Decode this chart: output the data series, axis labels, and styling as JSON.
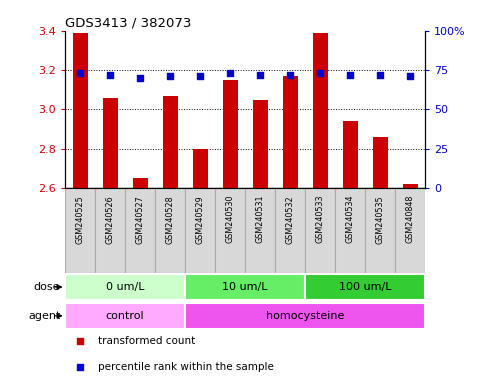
{
  "title": "GDS3413 / 382073",
  "samples": [
    "GSM240525",
    "GSM240526",
    "GSM240527",
    "GSM240528",
    "GSM240529",
    "GSM240530",
    "GSM240531",
    "GSM240532",
    "GSM240533",
    "GSM240534",
    "GSM240535",
    "GSM240848"
  ],
  "transformed_count": [
    3.39,
    3.06,
    2.65,
    3.07,
    2.8,
    3.15,
    3.05,
    3.17,
    3.39,
    2.94,
    2.86,
    2.62
  ],
  "percentile_rank": [
    73,
    72,
    70,
    71,
    71,
    73,
    72,
    72,
    73,
    72,
    72,
    71
  ],
  "bar_color": "#cc0000",
  "dot_color": "#0000cc",
  "ylim_left": [
    2.6,
    3.4
  ],
  "ylim_right": [
    0,
    100
  ],
  "yticks_left": [
    2.6,
    2.8,
    3.0,
    3.2,
    3.4
  ],
  "yticks_right": [
    0,
    25,
    50,
    75,
    100
  ],
  "ytick_labels_right": [
    "0",
    "25",
    "50",
    "75",
    "100%"
  ],
  "dose_groups": [
    {
      "label": "0 um/L",
      "start": 0,
      "end": 4,
      "color": "#ccffcc"
    },
    {
      "label": "10 um/L",
      "start": 4,
      "end": 8,
      "color": "#66ee66"
    },
    {
      "label": "100 um/L",
      "start": 8,
      "end": 12,
      "color": "#33cc33"
    }
  ],
  "agent_groups": [
    {
      "label": "control",
      "start": 0,
      "end": 4,
      "color": "#ffaaff"
    },
    {
      "label": "homocysteine",
      "start": 4,
      "end": 12,
      "color": "#ee55ee"
    }
  ],
  "sample_cell_color": "#d8d8d8",
  "sample_cell_edge": "#aaaaaa",
  "dose_label": "dose",
  "agent_label": "agent",
  "legend_items": [
    {
      "color": "#cc0000",
      "label": "transformed count"
    },
    {
      "color": "#0000cc",
      "label": "percentile rank within the sample"
    }
  ],
  "bar_width": 0.5,
  "background_color": "#ffffff",
  "tick_label_color_left": "#cc0000",
  "tick_label_color_right": "#0000cc"
}
